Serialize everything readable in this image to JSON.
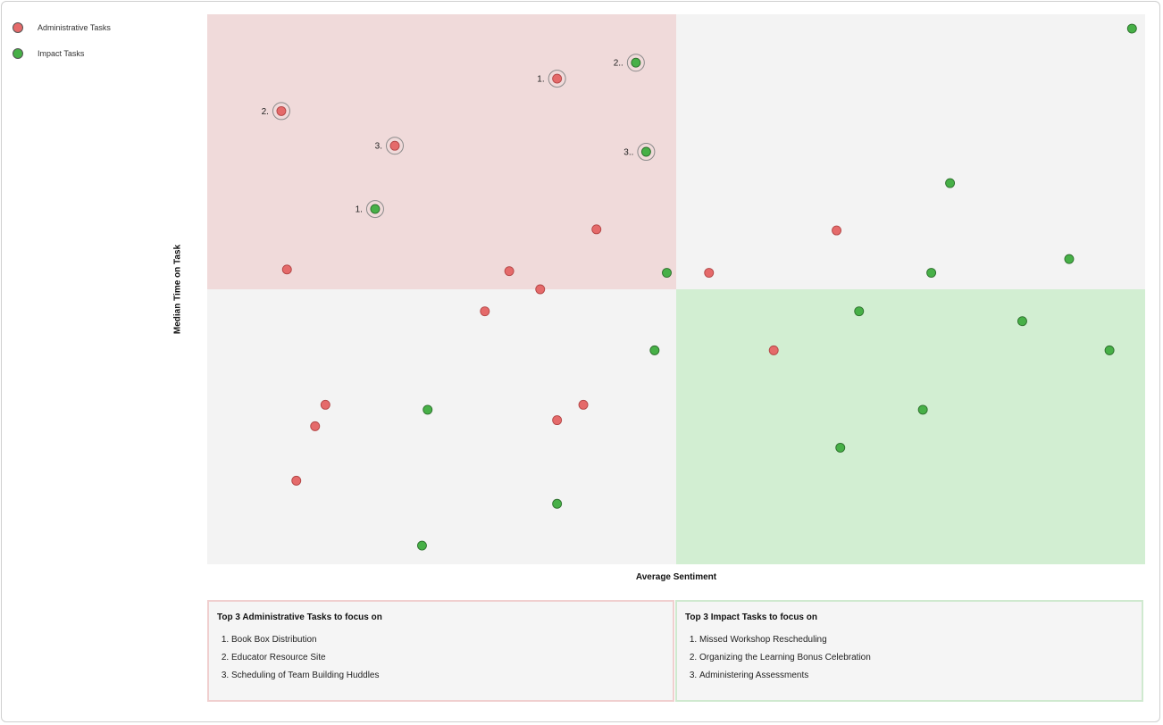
{
  "legend": {
    "admin_label": "Administrative Tasks",
    "impact_label": "Impact Tasks"
  },
  "colors": {
    "admin": "#e56a6a",
    "impact": "#47b047",
    "quad_top_left": "#f0dada",
    "quad_bottom_right": "#d2eed2",
    "quad_neutral": "#f3f3f3"
  },
  "chart_data": {
    "type": "scatter",
    "title": "",
    "xlabel": "Average Sentiment",
    "ylabel": "Median Time on Task",
    "xlim": [
      0,
      100
    ],
    "ylim": [
      0,
      100
    ],
    "quadrant_split": {
      "x": 50,
      "y": 50
    },
    "series": [
      {
        "name": "Administrative Tasks",
        "color": "#e56a6a",
        "points": [
          {
            "x": 37.3,
            "y": 88.3,
            "rank": "1."
          },
          {
            "x": 7.9,
            "y": 82.4,
            "rank": "2."
          },
          {
            "x": 20.0,
            "y": 76.1,
            "rank": "3."
          },
          {
            "x": 41.5,
            "y": 60.9
          },
          {
            "x": 8.5,
            "y": 53.6
          },
          {
            "x": 32.2,
            "y": 53.3
          },
          {
            "x": 35.5,
            "y": 50.0
          },
          {
            "x": 29.6,
            "y": 46.0
          },
          {
            "x": 53.5,
            "y": 53.0
          },
          {
            "x": 67.1,
            "y": 60.7
          },
          {
            "x": 60.4,
            "y": 38.9
          },
          {
            "x": 12.6,
            "y": 29.0
          },
          {
            "x": 11.5,
            "y": 25.1
          },
          {
            "x": 9.5,
            "y": 15.2
          },
          {
            "x": 37.3,
            "y": 26.2
          },
          {
            "x": 40.1,
            "y": 29.0
          }
        ]
      },
      {
        "name": "Impact Tasks",
        "color": "#47b047",
        "points": [
          {
            "x": 17.9,
            "y": 64.6,
            "rank": "1."
          },
          {
            "x": 45.7,
            "y": 91.2,
            "rank": "2.."
          },
          {
            "x": 46.8,
            "y": 75.0,
            "rank": "3.."
          },
          {
            "x": 49.0,
            "y": 53.0
          },
          {
            "x": 47.7,
            "y": 38.9
          },
          {
            "x": 23.5,
            "y": 28.1
          },
          {
            "x": 37.3,
            "y": 11.0
          },
          {
            "x": 22.9,
            "y": 3.4
          },
          {
            "x": 98.6,
            "y": 97.4
          },
          {
            "x": 79.2,
            "y": 69.3
          },
          {
            "x": 91.9,
            "y": 55.5
          },
          {
            "x": 77.2,
            "y": 53.0
          },
          {
            "x": 69.5,
            "y": 46.0
          },
          {
            "x": 86.9,
            "y": 44.2
          },
          {
            "x": 96.2,
            "y": 38.9
          },
          {
            "x": 76.3,
            "y": 28.1
          },
          {
            "x": 67.5,
            "y": 21.2
          }
        ]
      }
    ]
  },
  "panels": {
    "admin": {
      "title": "Top 3 Administrative Tasks to focus on",
      "items": [
        "Book Box Distribution",
        "Educator Resource Site",
        "Scheduling of Team Building Huddles"
      ]
    },
    "impact": {
      "title": "Top 3 Impact Tasks to focus on",
      "items": [
        "Missed Workshop Rescheduling",
        "Organizing the Learning Bonus Celebration",
        "Administering Assessments"
      ]
    }
  }
}
